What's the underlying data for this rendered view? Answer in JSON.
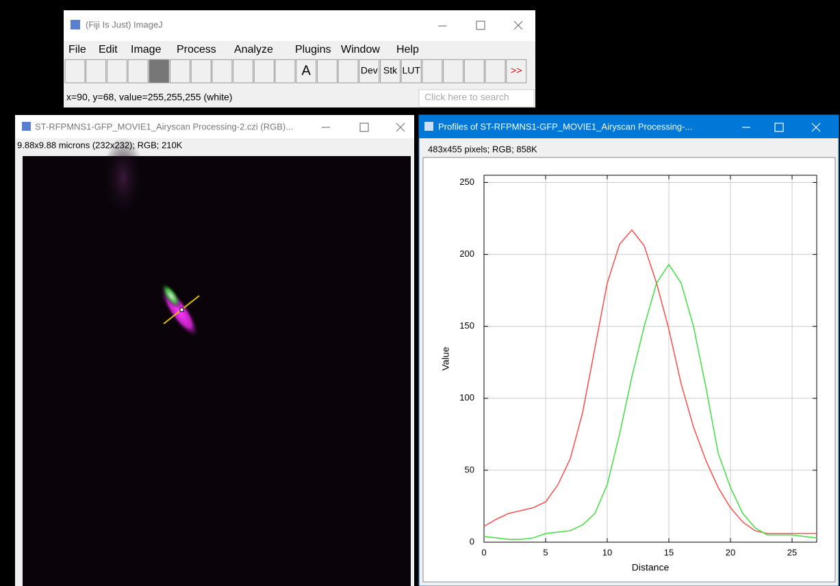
{
  "main_window": {
    "title": "(Fiji Is Just) ImageJ",
    "menu": [
      "File",
      "Edit",
      "Image",
      "Process",
      "Analyze",
      "Plugins",
      "Window",
      "Help"
    ],
    "toolbar": {
      "text_tool": "A",
      "dev": "Dev",
      "stk": "Stk",
      "lut": "LUT",
      "more": ">>"
    },
    "status": "x=90, y=68, value=255,255,255 (white)",
    "search": "Click here to search"
  },
  "image_window": {
    "title": "ST-RFPMNS1-GFP_MOVIE1_Airyscan Processing-2.czi (RGB)...",
    "info": "9.88x9.88 microns (232x232); RGB; 210K"
  },
  "plot_window": {
    "title": "Profiles of ST-RFPMNS1-GFP_MOVIE1_Airyscan Processing-...",
    "info": "483x455 pixels; RGB; 858K"
  },
  "chart_data": {
    "type": "line",
    "x_label": "Distance",
    "y_label": "Value",
    "x": [
      0,
      1,
      2,
      3,
      4,
      5,
      6,
      7,
      8,
      9,
      10,
      11,
      12,
      13,
      14,
      15,
      16,
      17,
      18,
      19,
      20,
      21,
      22,
      23,
      24,
      25,
      26,
      27
    ],
    "series": [
      {
        "color": "#ff4a4a",
        "values": [
          11,
          16,
          20,
          22,
          24,
          28,
          40,
          58,
          90,
          135,
          180,
          207,
          217,
          206,
          180,
          148,
          110,
          80,
          57,
          38,
          24,
          14,
          8,
          6,
          6,
          6,
          6,
          6
        ]
      },
      {
        "color": "#3ee03e",
        "values": [
          4,
          3,
          2,
          2,
          3,
          6,
          7,
          8,
          12,
          20,
          40,
          75,
          115,
          150,
          180,
          193,
          180,
          150,
          108,
          62,
          38,
          20,
          10,
          5,
          5,
          5,
          4,
          3
        ]
      }
    ],
    "xlim": [
      0,
      27
    ],
    "ylim": [
      0,
      255
    ],
    "xticks": [
      0,
      5,
      10,
      15,
      20,
      25
    ],
    "yticks": [
      0,
      50,
      100,
      150,
      200,
      250
    ],
    "grid": true
  }
}
